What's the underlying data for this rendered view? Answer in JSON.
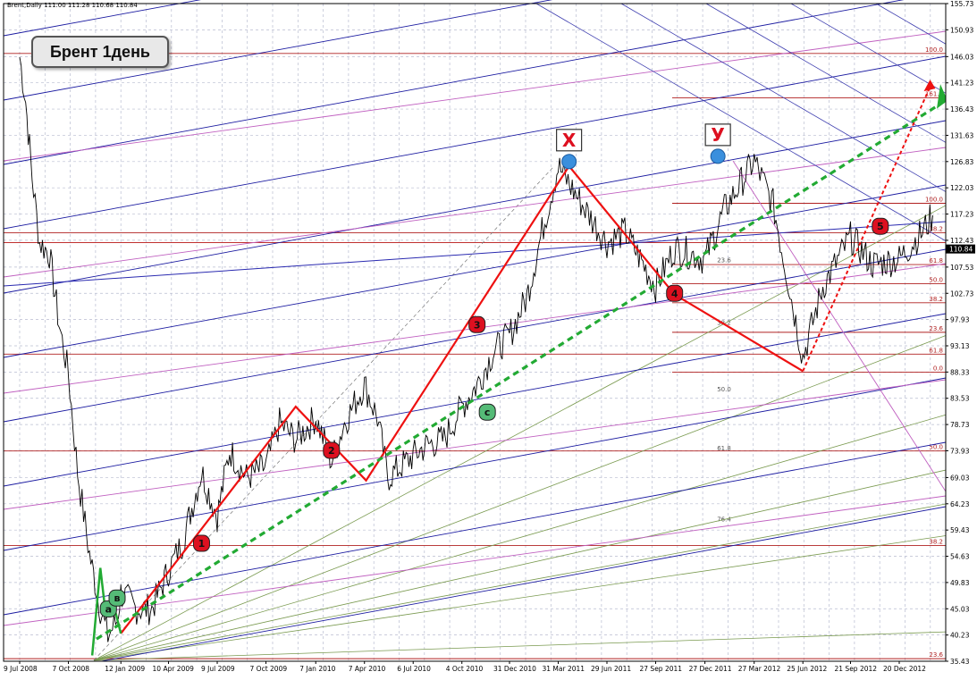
{
  "header": {
    "symbol": "Brent,Daily",
    "ohlc": "111.00 111.28 110.68 110.84"
  },
  "title_label": "Брент 1день",
  "colors": {
    "price": "#000000",
    "zigzag": "#ee1111",
    "trend": "#22aa33",
    "blue_channel": "#1a1aa0",
    "purple": "#c060c0",
    "fib": "#b02020",
    "fan": "#7a9a50",
    "grid": "#b8bcd0",
    "marker_red": "#dd1020",
    "marker_green": "#55bb77",
    "marker_blue": "#3a8fdd"
  },
  "chart_data": {
    "type": "line",
    "title": "Брент 1день",
    "xlabel": "",
    "ylabel": "",
    "ylim": [
      35.43,
      155.73
    ],
    "current_price": 110.84,
    "y_ticks": [
      "155.73",
      "150.93",
      "146.03",
      "141.23",
      "136.43",
      "131.63",
      "126.83",
      "122.03",
      "117.23",
      "112.43",
      "107.53",
      "102.73",
      "97.93",
      "93.13",
      "88.33",
      "83.53",
      "78.73",
      "73.93",
      "69.03",
      "64.23",
      "59.43",
      "54.63",
      "49.83",
      "45.03",
      "40.23",
      "35.43"
    ],
    "x_ticks": [
      "9 Jul 2008",
      "7 Oct 2008",
      "12 Jan 2009",
      "10 Apr 2009",
      "9 Jul 2009",
      "7 Oct 2009",
      "7 Jan 2010",
      "7 Apr 2010",
      "6 Jul 2010",
      "4 Oct 2010",
      "31 Dec 2010",
      "31 Mar 2011",
      "29 Jun 2011",
      "27 Sep 2011",
      "27 Dec 2011",
      "27 Mar 2012",
      "25 Jun 2012",
      "21 Sep 2012",
      "20 Dec 2012"
    ],
    "price_series": {
      "name": "Brent",
      "x": [
        "9 Jul 2008",
        "20 Jul 2008",
        "1 Aug 2008",
        "15 Aug 2008",
        "2 Sep 2008",
        "20 Sep 2008",
        "7 Oct 2008",
        "24 Oct 2008",
        "15 Nov 2008",
        "5 Dec 2008",
        "19 Dec 2008",
        "5 Jan 2009",
        "12 Jan 2009",
        "10 Feb 2009",
        "10 Mar 2009",
        "10 Apr 2009",
        "5 May 2009",
        "10 Jun 2009",
        "9 Jul 2009",
        "1 Aug 2009",
        "1 Sep 2009",
        "7 Oct 2009",
        "1 Nov 2009",
        "1 Dec 2009",
        "7 Jan 2010",
        "5 Feb 2010",
        "1 Mar 2010",
        "7 Apr 2010",
        "1 May 2010",
        "20 May 2010",
        "6 Jul 2010",
        "1 Aug 2010",
        "1 Sep 2010",
        "4 Oct 2010",
        "1 Nov 2010",
        "1 Dec 2010",
        "31 Dec 2010",
        "1 Feb 2011",
        "1 Mar 2011",
        "31 Mar 2011",
        "1 May 2011",
        "29 Jun 2011",
        "1 Aug 2011",
        "27 Sep 2011",
        "1 Nov 2011",
        "27 Dec 2011",
        "1 Feb 2012",
        "27 Mar 2012",
        "1 May 2012",
        "25 Jun 2012",
        "1 Aug 2012",
        "21 Sep 2012",
        "1 Nov 2012",
        "20 Dec 2012",
        "1 Feb 2013",
        "20 Feb 2013"
      ],
      "values": [
        146.0,
        138.0,
        124.0,
        112.0,
        110.0,
        97.0,
        88.0,
        70.0,
        55.0,
        45.0,
        40.0,
        43.0,
        48.0,
        45.0,
        45.0,
        52.0,
        57.0,
        70.0,
        62.0,
        74.0,
        69.0,
        71.0,
        79.0,
        76.0,
        80.0,
        72.0,
        79.0,
        86.0,
        80.0,
        69.0,
        73.0,
        75.0,
        76.0,
        82.0,
        86.0,
        92.0,
        95.0,
        102.0,
        114.0,
        126.0,
        121.0,
        112.0,
        114.0,
        104.0,
        111.0,
        109.0,
        118.0,
        127.0,
        119.0,
        91.0,
        104.0,
        113.0,
        108.0,
        109.0,
        114.0,
        117.0
      ]
    },
    "markers": [
      {
        "label": "a",
        "date": "20 Dec 2008",
        "value": 45.0
      },
      {
        "label": "в",
        "date": "5 Jan 2009",
        "value": 47.0
      },
      {
        "label": "1",
        "date": "10 Jun 2009",
        "value": 57.0
      },
      {
        "label": "2",
        "date": "5 Feb 2010",
        "value": 74.0
      },
      {
        "label": "3",
        "date": "1 Nov 2010",
        "value": 97.0
      },
      {
        "label": "c",
        "date": "20 Nov 2010",
        "value": 81.0
      },
      {
        "label": "X",
        "date": "20 Apr 2011",
        "value": 126.83
      },
      {
        "label": "4",
        "date": "1 Nov 2011",
        "value": 102.73
      },
      {
        "label": "У",
        "date": "20 Jan 2012",
        "value": 127.8
      },
      {
        "label": "5",
        "date": "15 Nov 2012",
        "value": 115.0
      }
    ],
    "zigzag": [
      {
        "date": "12 Jan 2009",
        "value": 40.5
      },
      {
        "date": "1 Dec 2009",
        "value": 82.0
      },
      {
        "date": "10 Apr 2010",
        "value": 68.5
      },
      {
        "date": "20 Apr 2011",
        "value": 126.0
      },
      {
        "date": "1 Nov 2011",
        "value": 102.5
      },
      {
        "date": "25 Jun 2012",
        "value": 88.5
      },
      {
        "date": "15 Feb 2013",
        "value": 140.5
      }
    ],
    "fib_levels_right": [
      "100.0",
      "161.8",
      "100.0",
      "38.2",
      "61.8",
      "50.0",
      "38.2",
      "23.6",
      "61.8",
      "0.0",
      "50.0",
      "38.2",
      "23.6"
    ],
    "fib_levels_mid": [
      "23.6",
      "38.2",
      "50.0",
      "61.8",
      "76.4"
    ]
  }
}
